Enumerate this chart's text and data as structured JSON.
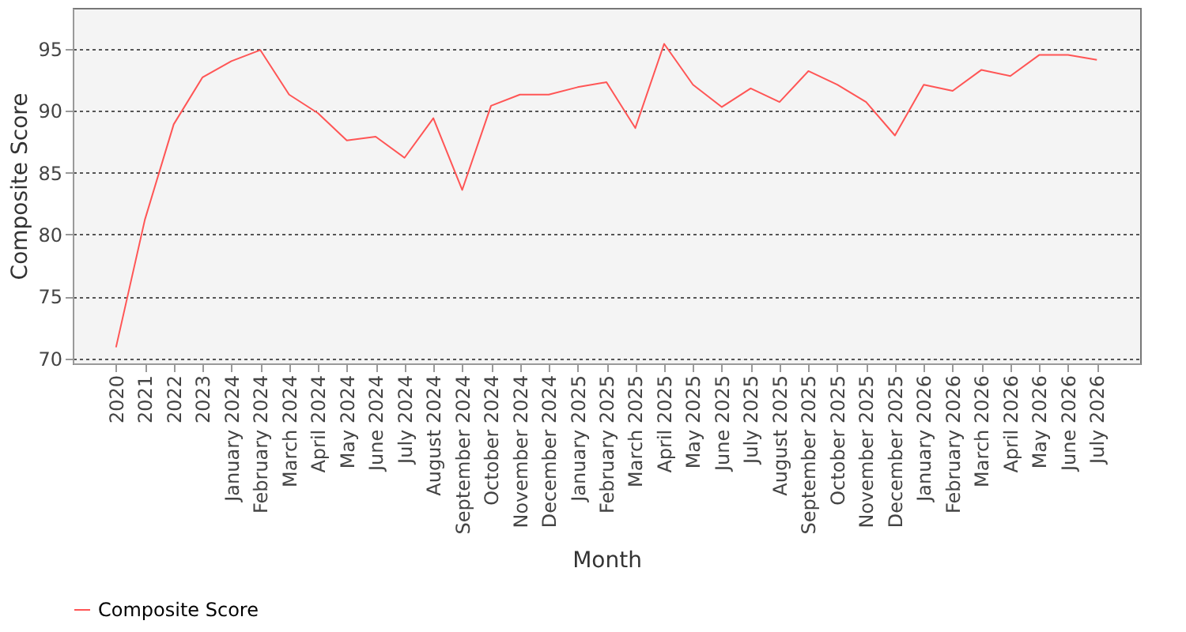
{
  "chart_data": {
    "type": "line",
    "xlabel": "Month",
    "ylabel": "Composite Score",
    "categories": [
      "2020",
      "2021",
      "2022",
      "2023",
      "January 2024",
      "February 2024",
      "March 2024",
      "April 2024",
      "May 2024",
      "June 2024",
      "July 2024",
      "August 2024",
      "September 2024",
      "October 2024",
      "November 2024",
      "December 2024",
      "January 2025",
      "February 2025",
      "March 2025",
      "April 2025",
      "May 2025",
      "June 2025",
      "July 2025",
      "August 2025",
      "September 2025",
      "October 2025",
      "November 2025",
      "December 2025",
      "January 2026",
      "February 2026",
      "March 2026",
      "April 2026",
      "May 2026",
      "June 2026",
      "July 2026"
    ],
    "series": [
      {
        "name": "Composite Score",
        "color": "#ff5555",
        "values": [
          70.9,
          81.2,
          88.9,
          92.7,
          94.0,
          94.9,
          91.3,
          89.8,
          87.6,
          87.9,
          86.2,
          89.4,
          83.6,
          90.4,
          91.3,
          91.3,
          91.9,
          92.3,
          88.6,
          95.4,
          92.1,
          90.3,
          91.8,
          90.7,
          93.2,
          92.1,
          90.7,
          88.0,
          92.1,
          91.6,
          93.3,
          92.8,
          94.5,
          94.5,
          94.1
        ]
      }
    ],
    "ylim": [
      69.6,
      98.3
    ],
    "yticks": [
      70,
      75,
      80,
      85,
      90,
      95
    ],
    "grid": "y",
    "legend": "bottom",
    "marker": "none",
    "line_style": "solid"
  }
}
